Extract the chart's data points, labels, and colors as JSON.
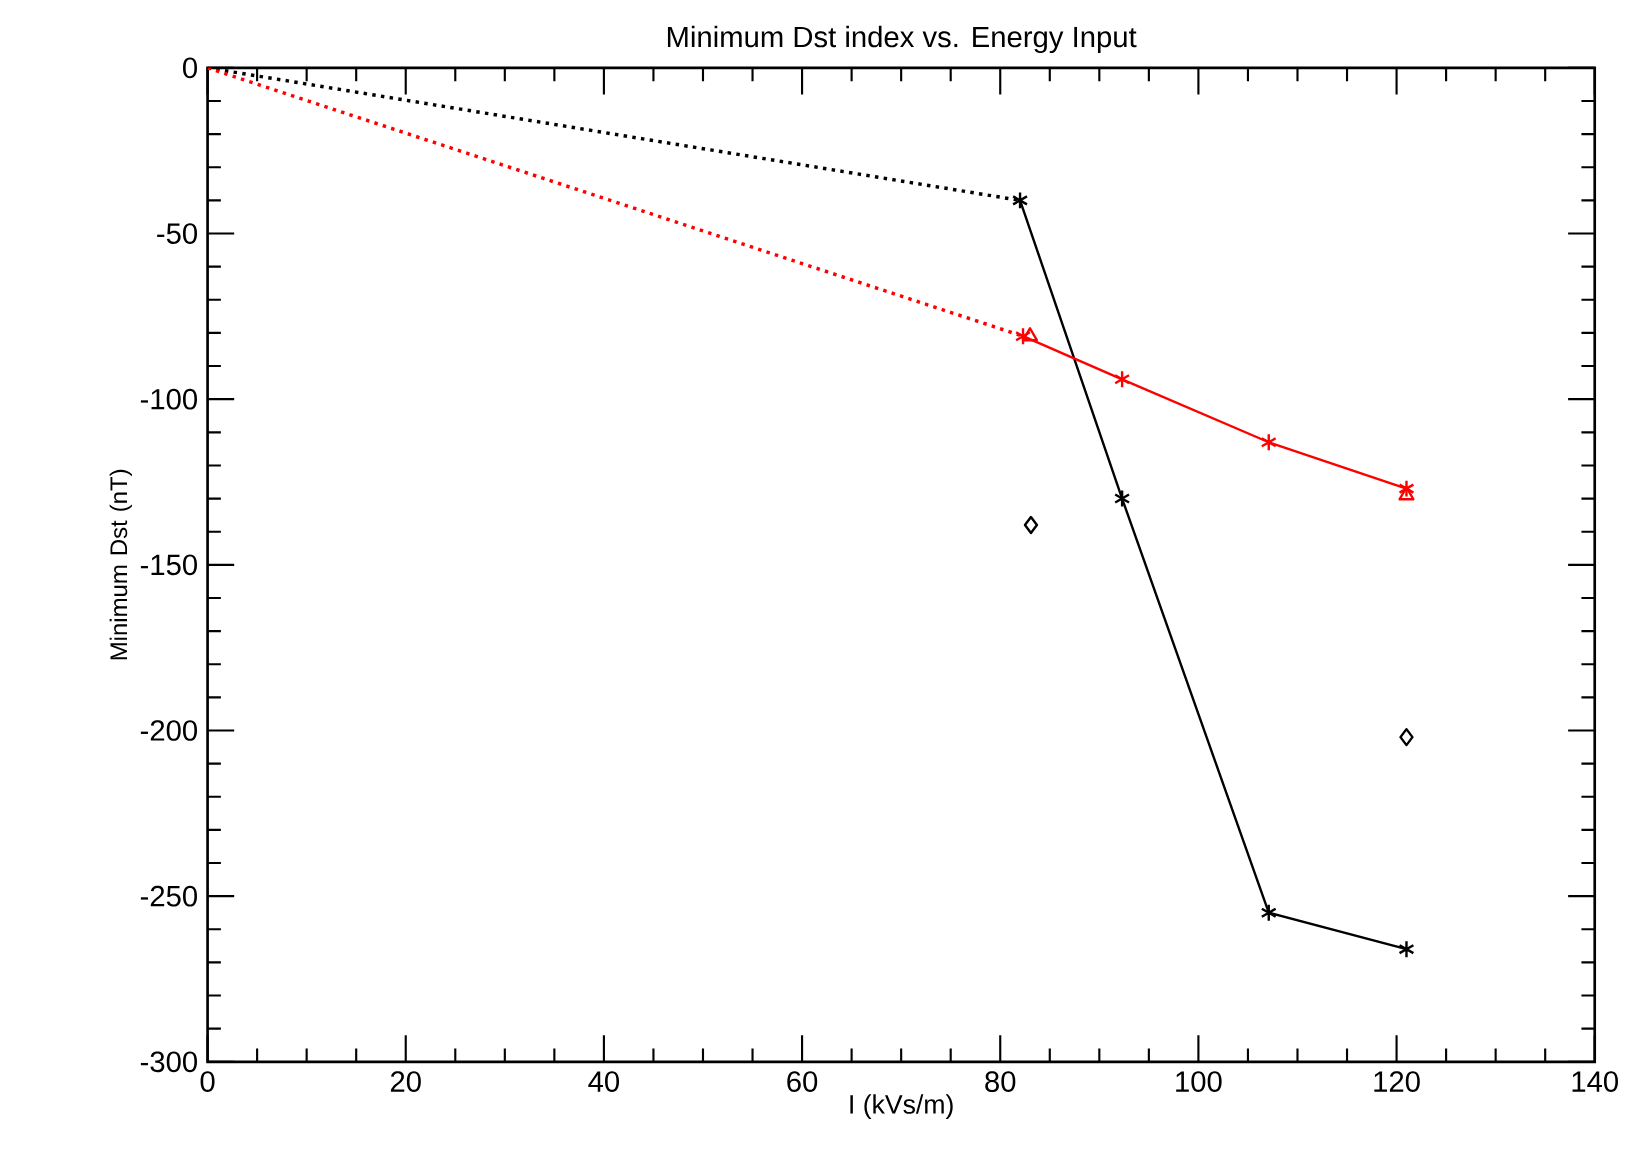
{
  "chart_data": {
    "type": "line",
    "title": "Minimum Dst index vs. Energy Input",
    "xlabel": "I (kVs/m)",
    "ylabel": "Minimum Dst (nT)",
    "xlim": [
      0,
      140
    ],
    "ylim": [
      -300,
      0
    ],
    "xticks": [
      0,
      20,
      40,
      60,
      80,
      100,
      120,
      140
    ],
    "yticks": [
      -300,
      -250,
      -200,
      -150,
      -100,
      -50,
      0
    ],
    "series": [
      {
        "color": "#000000",
        "x": [
          0,
          82
        ],
        "values": [
          0,
          -40
        ],
        "line_style": "dotted"
      },
      {
        "color": "#ff0000",
        "x": [
          0,
          82.3
        ],
        "values": [
          0,
          -81
        ],
        "line_style": "dotted"
      },
      {
        "color": "#000000",
        "x": [
          82,
          92.3,
          107.1,
          121
        ],
        "values": [
          -40,
          -130,
          -255,
          -266
        ],
        "line_style": "solid",
        "marker": "cross"
      },
      {
        "color": "#ff0000",
        "x": [
          82.3,
          92.3,
          107.1,
          121
        ],
        "values": [
          -81,
          -94,
          -113,
          -127
        ],
        "line_style": "solid",
        "marker": "cross"
      },
      {
        "type": "scatter",
        "color": "#ff0000",
        "x": [
          83,
          121
        ],
        "values": [
          -81,
          -129
        ],
        "marker": "triangle"
      },
      {
        "type": "scatter",
        "color": "#000000",
        "x": [
          83.1,
          121
        ],
        "values": [
          -138,
          -202
        ],
        "marker": "diamond"
      }
    ]
  }
}
